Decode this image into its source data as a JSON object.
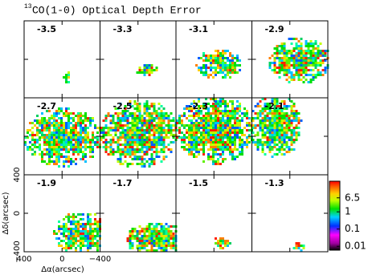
{
  "chart_data": {
    "type": "channel-map",
    "title_superscript": "13",
    "title": "CO(1-0) Optical Depth Error",
    "panels": [
      "-3.5",
      "-3.3",
      "-3.1",
      "-2.9",
      "-2.7",
      "-2.5",
      "-2.3",
      "-2.1",
      "-1.9",
      "-1.7",
      "-1.5",
      "-1.3"
    ],
    "columns": 4,
    "xlabel": "Δα(arcsec)",
    "ylabel": "Δδ(arcsec)",
    "xlim": [
      400,
      -400
    ],
    "xticks": [
      {
        "value": 400,
        "label": "400"
      },
      0,
      {
        "value": -400,
        "label": "−400"
      }
    ],
    "ylim": [
      -400,
      400
    ],
    "yticks": [
      {
        "value": -400,
        "label": "−400"
      },
      0,
      {
        "value": 400,
        "label": "400"
      }
    ],
    "colorbar": {
      "log_scale": true,
      "clim": [
        0.006,
        60
      ],
      "ticks": [
        0.01,
        0.1,
        1,
        6.5
      ]
    }
  }
}
